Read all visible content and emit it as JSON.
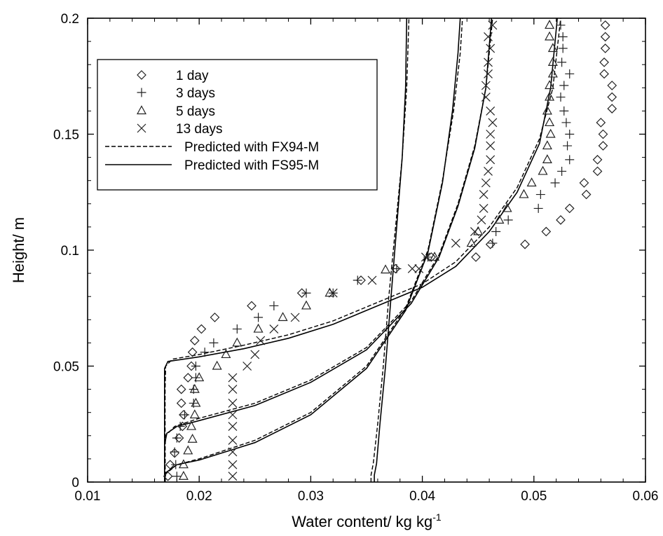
{
  "chart_data": {
    "type": "scatter",
    "title": "",
    "xlabel": "Water content/ kg kg",
    "xlabel_superscript": "-1",
    "ylabel": "Height/ m",
    "xlim": [
      0.01,
      0.06
    ],
    "ylim": [
      0,
      0.2
    ],
    "x_ticks": [
      "0.01",
      "0.02",
      "0.03",
      "0.04",
      "0.05",
      "0.06"
    ],
    "y_ticks": [
      "0",
      "0.05",
      "0.1",
      "0.15",
      "0.2"
    ],
    "grid": false,
    "legend_position": "top-left",
    "markers": {
      "1 day": "diamond",
      "3 days": "plus",
      "5 days": "triangle",
      "13 days": "cross"
    },
    "series": [
      {
        "name": "1 day",
        "marker": "diamond",
        "points": [
          [
            0.0172,
            0.0025
          ],
          [
            0.0174,
            0.0075
          ],
          [
            0.0178,
            0.0125
          ],
          [
            0.0182,
            0.019
          ],
          [
            0.0185,
            0.024
          ],
          [
            0.0186,
            0.029
          ],
          [
            0.0184,
            0.034
          ],
          [
            0.0184,
            0.04
          ],
          [
            0.019,
            0.045
          ],
          [
            0.0193,
            0.05
          ],
          [
            0.0194,
            0.056
          ],
          [
            0.0196,
            0.061
          ],
          [
            0.0202,
            0.066
          ],
          [
            0.0214,
            0.071
          ],
          [
            0.0247,
            0.076
          ],
          [
            0.0292,
            0.0815
          ],
          [
            0.0345,
            0.087
          ],
          [
            0.0376,
            0.092
          ],
          [
            0.0408,
            0.097
          ],
          [
            0.0448,
            0.097
          ],
          [
            0.0461,
            0.1025
          ],
          [
            0.0492,
            0.1025
          ],
          [
            0.0511,
            0.108
          ],
          [
            0.0524,
            0.113
          ],
          [
            0.0532,
            0.118
          ],
          [
            0.0547,
            0.124
          ],
          [
            0.0545,
            0.129
          ],
          [
            0.0557,
            0.134
          ],
          [
            0.0557,
            0.139
          ],
          [
            0.0562,
            0.145
          ],
          [
            0.0562,
            0.15
          ],
          [
            0.056,
            0.155
          ],
          [
            0.057,
            0.161
          ],
          [
            0.057,
            0.166
          ],
          [
            0.057,
            0.171
          ],
          [
            0.0563,
            0.176
          ],
          [
            0.0563,
            0.181
          ],
          [
            0.0564,
            0.187
          ],
          [
            0.0564,
            0.192
          ],
          [
            0.0564,
            0.197
          ]
        ]
      },
      {
        "name": "3 days",
        "marker": "plus",
        "points": [
          [
            0.018,
            0.0025
          ],
          [
            0.0179,
            0.0075
          ],
          [
            0.0178,
            0.013
          ],
          [
            0.018,
            0.019
          ],
          [
            0.0183,
            0.024
          ],
          [
            0.0187,
            0.029
          ],
          [
            0.0195,
            0.034
          ],
          [
            0.0195,
            0.04
          ],
          [
            0.0197,
            0.045
          ],
          [
            0.0197,
            0.05
          ],
          [
            0.0205,
            0.056
          ],
          [
            0.0213,
            0.06
          ],
          [
            0.0234,
            0.066
          ],
          [
            0.0253,
            0.071
          ],
          [
            0.0267,
            0.076
          ],
          [
            0.0296,
            0.0815
          ],
          [
            0.032,
            0.0815
          ],
          [
            0.0342,
            0.087
          ],
          [
            0.0377,
            0.092
          ],
          [
            0.0405,
            0.097
          ],
          [
            0.0463,
            0.103
          ],
          [
            0.0466,
            0.108
          ],
          [
            0.0477,
            0.113
          ],
          [
            0.0504,
            0.118
          ],
          [
            0.0506,
            0.124
          ],
          [
            0.0519,
            0.129
          ],
          [
            0.0525,
            0.134
          ],
          [
            0.0532,
            0.139
          ],
          [
            0.053,
            0.145
          ],
          [
            0.0532,
            0.15
          ],
          [
            0.0529,
            0.155
          ],
          [
            0.0527,
            0.16
          ],
          [
            0.0524,
            0.166
          ],
          [
            0.0527,
            0.171
          ],
          [
            0.0532,
            0.176
          ],
          [
            0.0525,
            0.181
          ],
          [
            0.0526,
            0.187
          ],
          [
            0.0526,
            0.192
          ],
          [
            0.0524,
            0.197
          ]
        ]
      },
      {
        "name": "5 days",
        "marker": "triangle",
        "points": [
          [
            0.0186,
            0.0025
          ],
          [
            0.0186,
            0.0075
          ],
          [
            0.019,
            0.0135
          ],
          [
            0.0194,
            0.0185
          ],
          [
            0.0193,
            0.024
          ],
          [
            0.0196,
            0.029
          ],
          [
            0.0197,
            0.034
          ],
          [
            0.0196,
            0.04
          ],
          [
            0.02,
            0.045
          ],
          [
            0.0216,
            0.05
          ],
          [
            0.0224,
            0.055
          ],
          [
            0.0234,
            0.06
          ],
          [
            0.0253,
            0.066
          ],
          [
            0.0275,
            0.071
          ],
          [
            0.0296,
            0.076
          ],
          [
            0.0317,
            0.0815
          ],
          [
            0.0367,
            0.0915
          ],
          [
            0.0411,
            0.097
          ],
          [
            0.0444,
            0.103
          ],
          [
            0.045,
            0.108
          ],
          [
            0.0469,
            0.113
          ],
          [
            0.0476,
            0.118
          ],
          [
            0.0491,
            0.124
          ],
          [
            0.0498,
            0.129
          ],
          [
            0.0508,
            0.134
          ],
          [
            0.0512,
            0.139
          ],
          [
            0.0512,
            0.145
          ],
          [
            0.0515,
            0.15
          ],
          [
            0.0514,
            0.155
          ],
          [
            0.0512,
            0.16
          ],
          [
            0.0514,
            0.166
          ],
          [
            0.0514,
            0.171
          ],
          [
            0.0517,
            0.176
          ],
          [
            0.0517,
            0.181
          ],
          [
            0.0517,
            0.187
          ],
          [
            0.0514,
            0.192
          ],
          [
            0.0514,
            0.197
          ]
        ]
      },
      {
        "name": "13 days",
        "marker": "cross",
        "points": [
          [
            0.023,
            0.0025
          ],
          [
            0.023,
            0.0075
          ],
          [
            0.023,
            0.013
          ],
          [
            0.023,
            0.018
          ],
          [
            0.023,
            0.024
          ],
          [
            0.023,
            0.029
          ],
          [
            0.023,
            0.034
          ],
          [
            0.023,
            0.04
          ],
          [
            0.023,
            0.045
          ],
          [
            0.0243,
            0.05
          ],
          [
            0.025,
            0.055
          ],
          [
            0.0255,
            0.061
          ],
          [
            0.0267,
            0.066
          ],
          [
            0.0286,
            0.071
          ],
          [
            0.032,
            0.0815
          ],
          [
            0.0355,
            0.087
          ],
          [
            0.0391,
            0.092
          ],
          [
            0.0397,
            0.092
          ],
          [
            0.0403,
            0.097
          ],
          [
            0.043,
            0.103
          ],
          [
            0.0447,
            0.108
          ],
          [
            0.0453,
            0.113
          ],
          [
            0.0455,
            0.118
          ],
          [
            0.0455,
            0.124
          ],
          [
            0.0457,
            0.129
          ],
          [
            0.0459,
            0.134
          ],
          [
            0.0461,
            0.139
          ],
          [
            0.0461,
            0.145
          ],
          [
            0.0461,
            0.15
          ],
          [
            0.0463,
            0.155
          ],
          [
            0.0461,
            0.16
          ],
          [
            0.0457,
            0.166
          ],
          [
            0.0457,
            0.171
          ],
          [
            0.0459,
            0.176
          ],
          [
            0.0459,
            0.181
          ],
          [
            0.0461,
            0.187
          ],
          [
            0.0459,
            0.192
          ],
          [
            0.0463,
            0.197
          ]
        ]
      }
    ],
    "curves": [
      {
        "name": "Predicted with FX94-M",
        "style": "dashed",
        "lines": [
          [
            [
              0.01695,
              0
            ],
            [
              0.01695,
              0.04
            ],
            [
              0.017,
              0.05
            ],
            [
              0.0176,
              0.053
            ],
            [
              0.02,
              0.055
            ],
            [
              0.024,
              0.059
            ],
            [
              0.028,
              0.0635
            ],
            [
              0.032,
              0.0695
            ],
            [
              0.036,
              0.0775
            ],
            [
              0.04,
              0.0855
            ],
            [
              0.043,
              0.095
            ],
            [
              0.046,
              0.11
            ],
            [
              0.0485,
              0.127
            ],
            [
              0.0505,
              0.148
            ],
            [
              0.0517,
              0.17
            ],
            [
              0.0524,
              0.2
            ]
          ],
          [
            [
              0.01695,
              0
            ],
            [
              0.01695,
              0.015
            ],
            [
              0.017,
              0.02
            ],
            [
              0.0178,
              0.024
            ],
            [
              0.02,
              0.0275
            ],
            [
              0.025,
              0.034
            ],
            [
              0.03,
              0.044
            ],
            [
              0.035,
              0.058
            ],
            [
              0.039,
              0.078
            ],
            [
              0.0415,
              0.098
            ],
            [
              0.0432,
              0.12
            ],
            [
              0.0447,
              0.145
            ],
            [
              0.0457,
              0.17
            ],
            [
              0.0463,
              0.2
            ]
          ],
          [
            [
              0.01695,
              0
            ],
            [
              0.017,
              0.0035
            ],
            [
              0.018,
              0.0075
            ],
            [
              0.02,
              0.01
            ],
            [
              0.025,
              0.018
            ],
            [
              0.03,
              0.03
            ],
            [
              0.035,
              0.05
            ],
            [
              0.0385,
              0.075
            ],
            [
              0.0405,
              0.1
            ],
            [
              0.0418,
              0.13
            ],
            [
              0.0428,
              0.16
            ],
            [
              0.0434,
              0.185
            ],
            [
              0.0436,
              0.2
            ]
          ],
          [
            [
              0.0354,
              0
            ],
            [
              0.0354,
              0.003
            ],
            [
              0.0356,
              0.008
            ],
            [
              0.036,
              0.025
            ],
            [
              0.0365,
              0.05
            ],
            [
              0.037,
              0.08
            ],
            [
              0.0376,
              0.11
            ],
            [
              0.0382,
              0.14
            ],
            [
              0.0386,
              0.17
            ],
            [
              0.0388,
              0.2
            ]
          ]
        ]
      },
      {
        "name": "Predicted with FS95-M",
        "style": "solid",
        "lines": [
          [
            [
              0.0169,
              0
            ],
            [
              0.0169,
              0.04
            ],
            [
              0.0169,
              0.049
            ],
            [
              0.0172,
              0.052
            ],
            [
              0.02,
              0.054
            ],
            [
              0.024,
              0.0575
            ],
            [
              0.028,
              0.062
            ],
            [
              0.032,
              0.068
            ],
            [
              0.036,
              0.076
            ],
            [
              0.04,
              0.084
            ],
            [
              0.043,
              0.093
            ],
            [
              0.046,
              0.108
            ],
            [
              0.0485,
              0.125
            ],
            [
              0.0505,
              0.146
            ],
            [
              0.0515,
              0.17
            ],
            [
              0.0521,
              0.2
            ]
          ],
          [
            [
              0.0169,
              0
            ],
            [
              0.0169,
              0.016
            ],
            [
              0.0171,
              0.021
            ],
            [
              0.018,
              0.024
            ],
            [
              0.02,
              0.0265
            ],
            [
              0.025,
              0.033
            ],
            [
              0.03,
              0.043
            ],
            [
              0.035,
              0.057
            ],
            [
              0.039,
              0.077
            ],
            [
              0.0415,
              0.097
            ],
            [
              0.0432,
              0.119
            ],
            [
              0.0447,
              0.144
            ],
            [
              0.0457,
              0.17
            ],
            [
              0.0462,
              0.2
            ]
          ],
          [
            [
              0.0169,
              0
            ],
            [
              0.017,
              0.004
            ],
            [
              0.018,
              0.0075
            ],
            [
              0.02,
              0.0095
            ],
            [
              0.025,
              0.017
            ],
            [
              0.03,
              0.029
            ],
            [
              0.035,
              0.049
            ],
            [
              0.0385,
              0.074
            ],
            [
              0.0405,
              0.099
            ],
            [
              0.0418,
              0.129
            ],
            [
              0.0427,
              0.16
            ],
            [
              0.0432,
              0.185
            ],
            [
              0.0434,
              0.2
            ]
          ],
          [
            [
              0.0357,
              0
            ],
            [
              0.0357,
              0.003
            ],
            [
              0.0359,
              0.008
            ],
            [
              0.0362,
              0.025
            ],
            [
              0.0367,
              0.05
            ],
            [
              0.0372,
              0.08
            ],
            [
              0.0377,
              0.11
            ],
            [
              0.0382,
              0.14
            ],
            [
              0.0385,
              0.17
            ],
            [
              0.0386,
              0.2
            ]
          ]
        ]
      }
    ],
    "legend": [
      "1 day",
      "3 days",
      "5 days",
      "13 days",
      "Predicted with FX94-M",
      "Predicted with FS95-M"
    ]
  }
}
